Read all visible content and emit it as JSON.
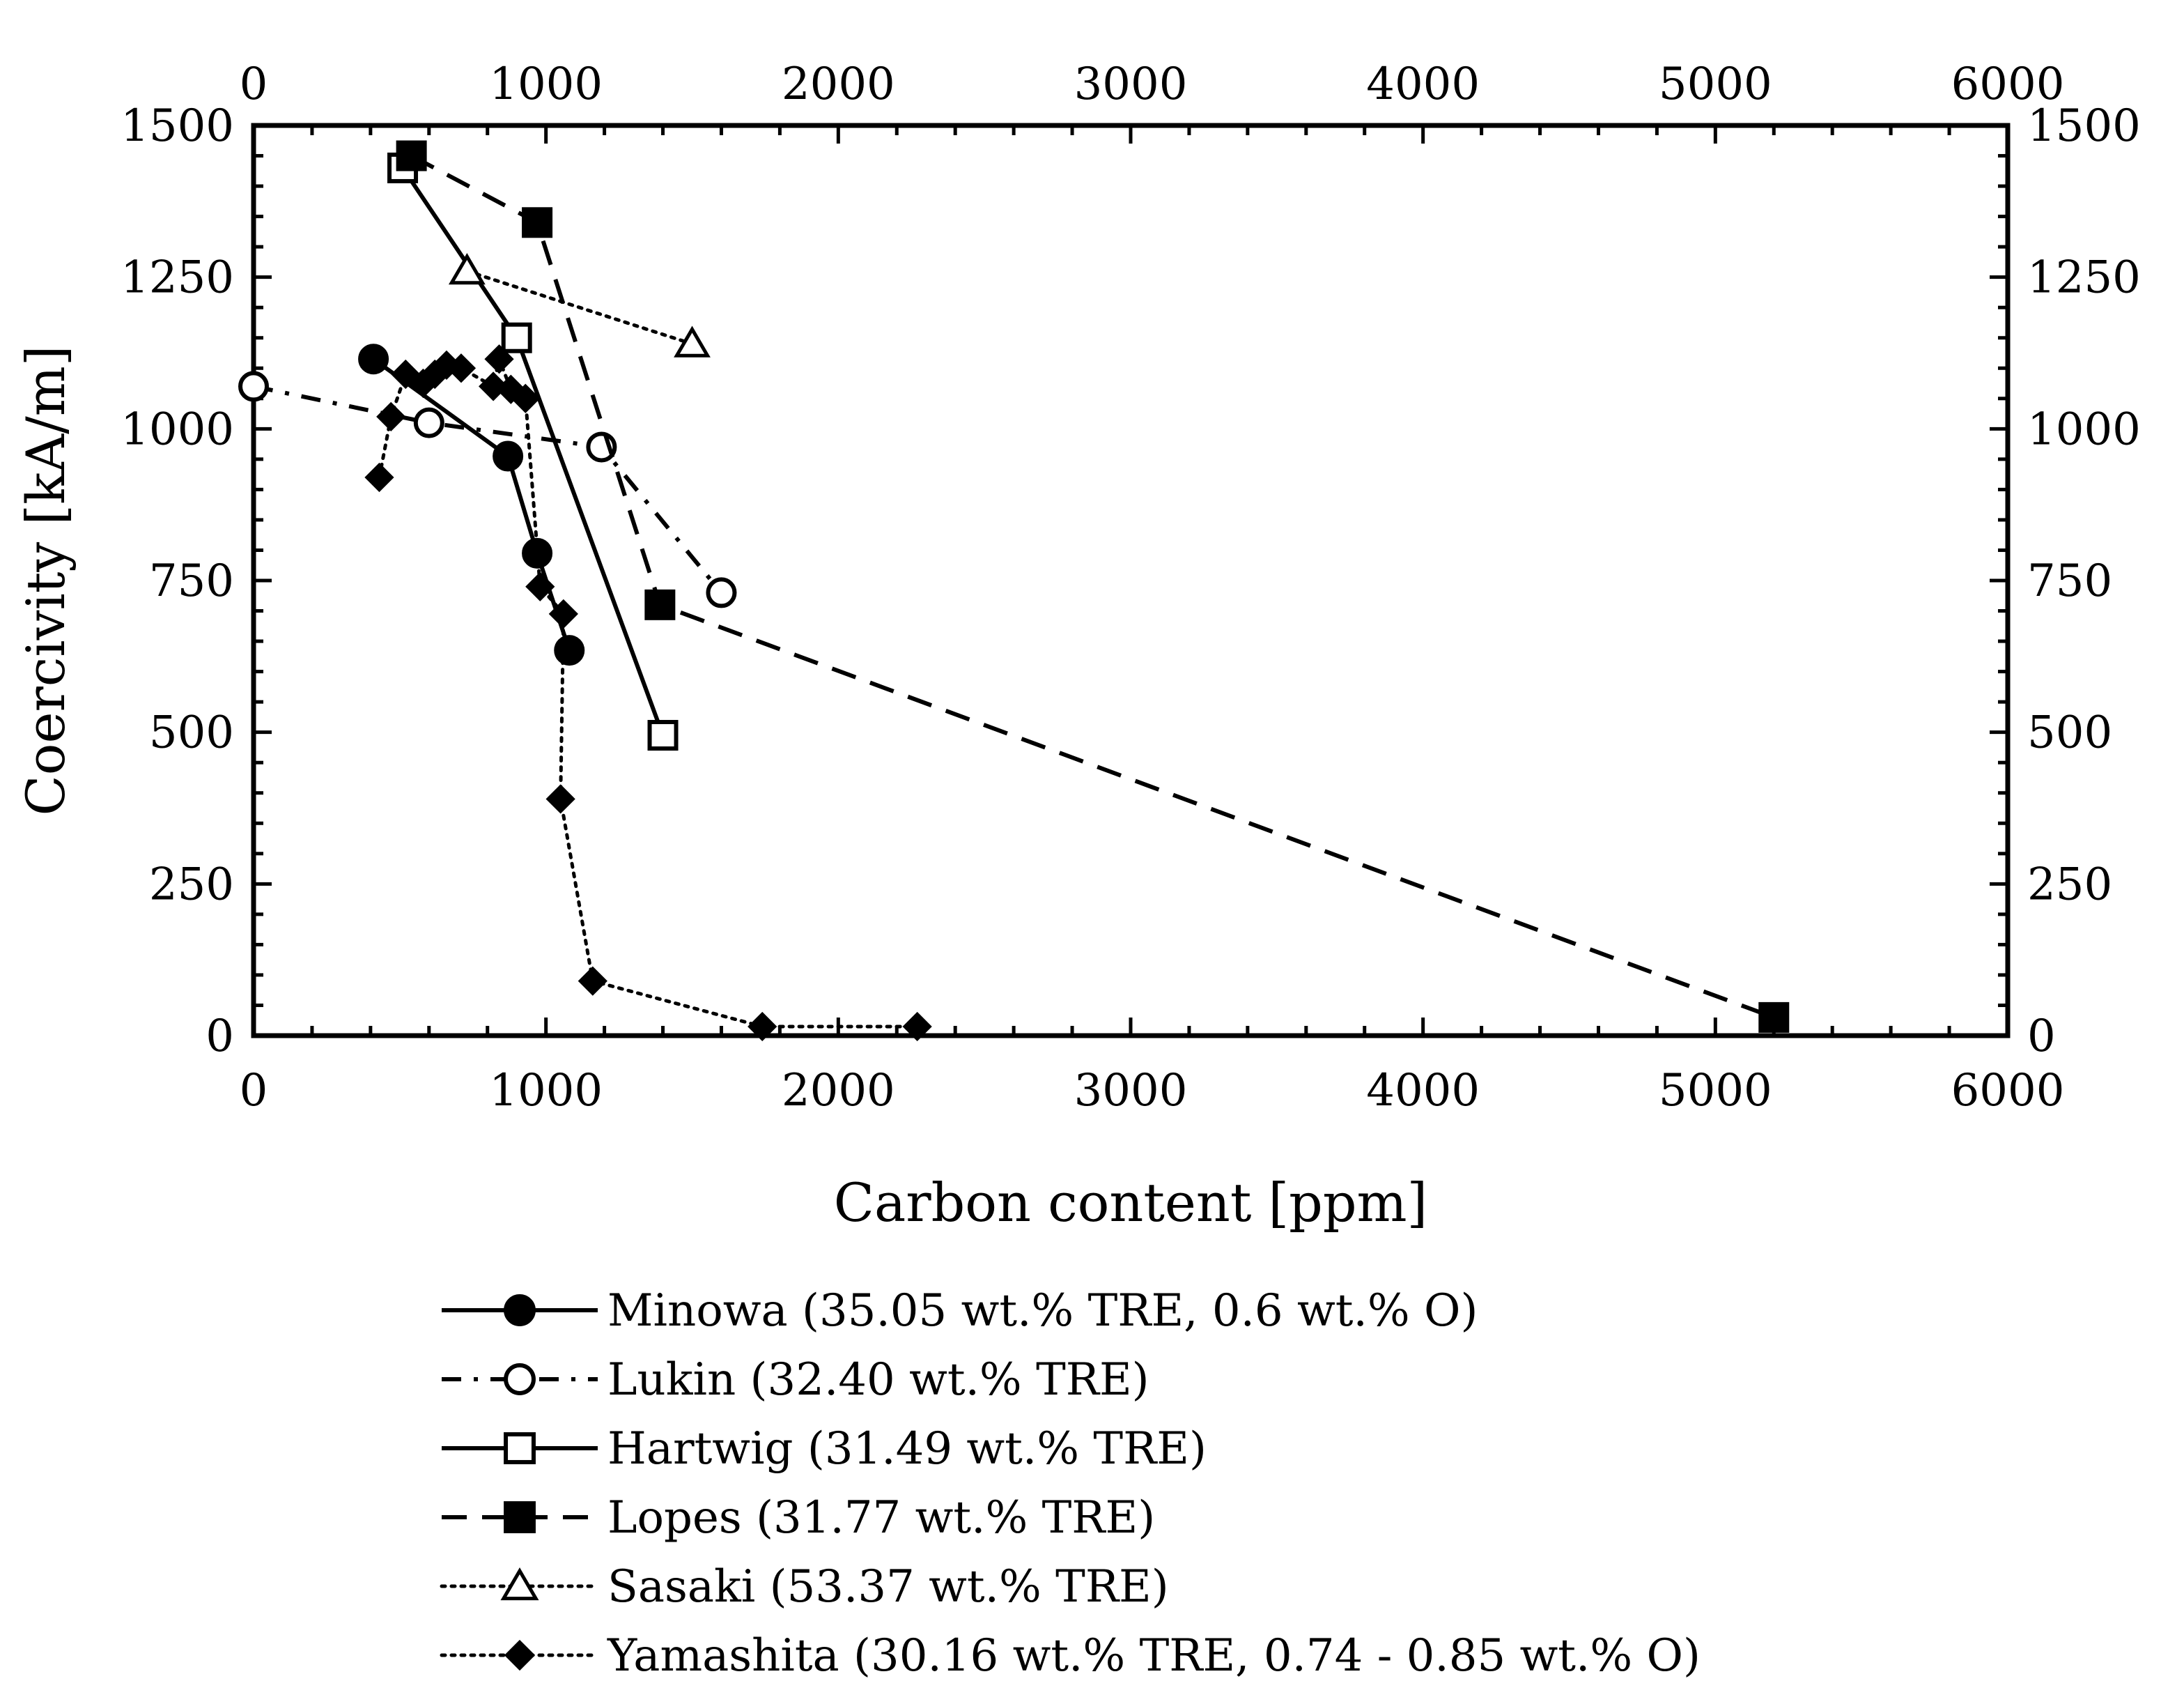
{
  "chart_data": {
    "type": "scatter",
    "title": "",
    "xlabel": "Carbon content [ppm]",
    "ylabel": "Coercivity [kA/m]",
    "xlim": [
      0,
      6000
    ],
    "ylim": [
      0,
      1500
    ],
    "xticks": [
      0,
      1000,
      2000,
      3000,
      4000,
      5000,
      6000
    ],
    "yticks": [
      0,
      250,
      500,
      750,
      1000,
      1250,
      1500
    ],
    "x_tick_labels": [
      "0",
      "1000",
      "2000",
      "3000",
      "4000",
      "5000",
      "6000"
    ],
    "y_tick_labels": [
      "0",
      "250",
      "500",
      "750",
      "1000",
      "1250",
      "1500"
    ],
    "grid": false,
    "legend_position": "bottom",
    "series": [
      {
        "name": "Minowa (35.05 wt.% TRE, 0.6 wt.% O)",
        "line": "solid",
        "marker": "circle",
        "fill": "filled",
        "x": [
          410,
          870,
          970,
          1080
        ],
        "y": [
          1115,
          955,
          795,
          635
        ]
      },
      {
        "name": "Lukin (32.40 wt.% TRE)",
        "line": "dashdot",
        "marker": "circle",
        "fill": "open",
        "x": [
          0,
          600,
          1190,
          1600
        ],
        "y": [
          1070,
          1010,
          970,
          730
        ]
      },
      {
        "name": "Hartwig (31.49 wt.% TRE)",
        "line": "solid",
        "marker": "square",
        "fill": "open",
        "x": [
          510,
          900,
          1400
        ],
        "y": [
          1430,
          1150,
          495
        ]
      },
      {
        "name": "Lopes (31.77 wt.% TRE)",
        "line": "dashed",
        "marker": "square",
        "fill": "filled",
        "x": [
          540,
          970,
          1390,
          5200
        ],
        "y": [
          1450,
          1340,
          710,
          30
        ]
      },
      {
        "name": "Sasaki (53.37 wt.% TRE)",
        "line": "dotted",
        "marker": "triangle",
        "fill": "open",
        "x": [
          730,
          1500
        ],
        "y": [
          1260,
          1140
        ]
      },
      {
        "name": "Yamashita (30.16 wt.% TRE, 0.74 - 0.85 wt.% O)",
        "line": "dotted",
        "marker": "diamond",
        "fill": "filled",
        "x": [
          430,
          470,
          520,
          580,
          620,
          660,
          710,
          820,
          840,
          880,
          930,
          980,
          1060,
          1050,
          1160,
          1740,
          2270
        ],
        "y": [
          920,
          1020,
          1090,
          1075,
          1090,
          1105,
          1100,
          1070,
          1115,
          1065,
          1050,
          740,
          695,
          390,
          90,
          15,
          15
        ]
      }
    ]
  }
}
